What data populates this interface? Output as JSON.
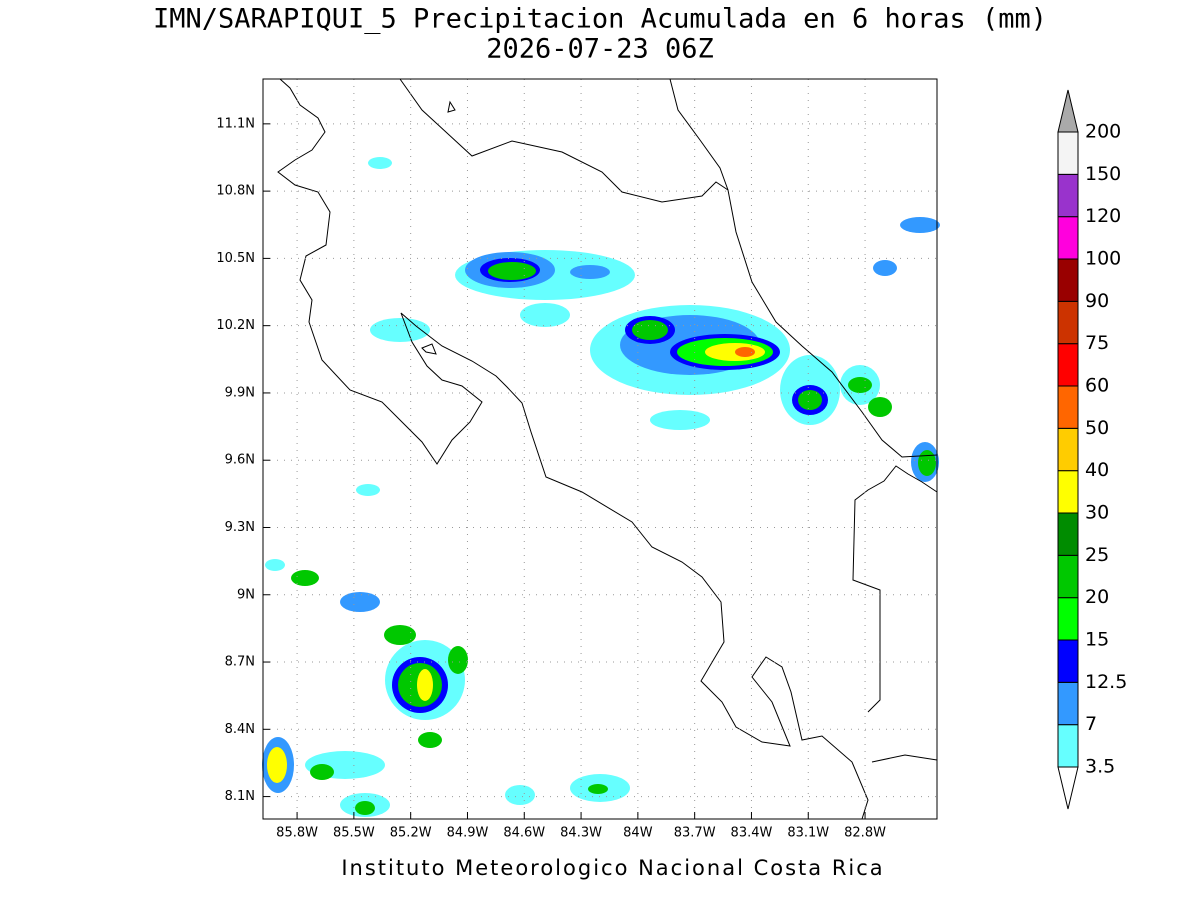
{
  "title": "IMN/SARAPIQUI_5 Precipitacion Acumulada en 6 horas (mm)",
  "subtitle": "2026-07-23 06Z",
  "footer": "Instituto Meteorologico Nacional Costa Rica",
  "map": {
    "lon_range": [
      -85.98,
      -82.42
    ],
    "lat_range": [
      8.0,
      11.3
    ],
    "grid": true,
    "lon_ticks": [
      {
        "value": -85.8,
        "label": "85.8W"
      },
      {
        "value": -85.5,
        "label": "85.5W"
      },
      {
        "value": -85.2,
        "label": "85.2W"
      },
      {
        "value": -84.9,
        "label": "84.9W"
      },
      {
        "value": -84.6,
        "label": "84.6W"
      },
      {
        "value": -84.3,
        "label": "84.3W"
      },
      {
        "value": -84.0,
        "label": "84W"
      },
      {
        "value": -83.7,
        "label": "83.7W"
      },
      {
        "value": -83.4,
        "label": "83.4W"
      },
      {
        "value": -83.1,
        "label": "83.1W"
      },
      {
        "value": -82.8,
        "label": "82.8W"
      }
    ],
    "lat_ticks": [
      {
        "value": 8.1,
        "label": "8.1N"
      },
      {
        "value": 8.4,
        "label": "8.4N"
      },
      {
        "value": 8.7,
        "label": "8.7N"
      },
      {
        "value": 9.0,
        "label": "9N"
      },
      {
        "value": 9.3,
        "label": "9.3N"
      },
      {
        "value": 9.6,
        "label": "9.6N"
      },
      {
        "value": 9.9,
        "label": "9.9N"
      },
      {
        "value": 10.2,
        "label": "10.2N"
      },
      {
        "value": 10.5,
        "label": "10.5N"
      },
      {
        "value": 10.8,
        "label": "10.8N"
      },
      {
        "value": 11.1,
        "label": "11.1N"
      }
    ]
  },
  "colorbar": {
    "levels": [
      3.5,
      7,
      12.5,
      15,
      20,
      25,
      30,
      40,
      50,
      60,
      75,
      90,
      100,
      120,
      150,
      200
    ],
    "colors": [
      "#66ffff",
      "#3399ff",
      "#0000ff",
      "#00ff00",
      "#00c800",
      "#008c00",
      "#ffff00",
      "#ffcc00",
      "#ff6600",
      "#ff0000",
      "#cc3300",
      "#990000",
      "#ff00dd",
      "#9933cc",
      "#f4f4f4"
    ],
    "over_color": "#aaaaaa",
    "under_color": "#ffffff"
  }
}
